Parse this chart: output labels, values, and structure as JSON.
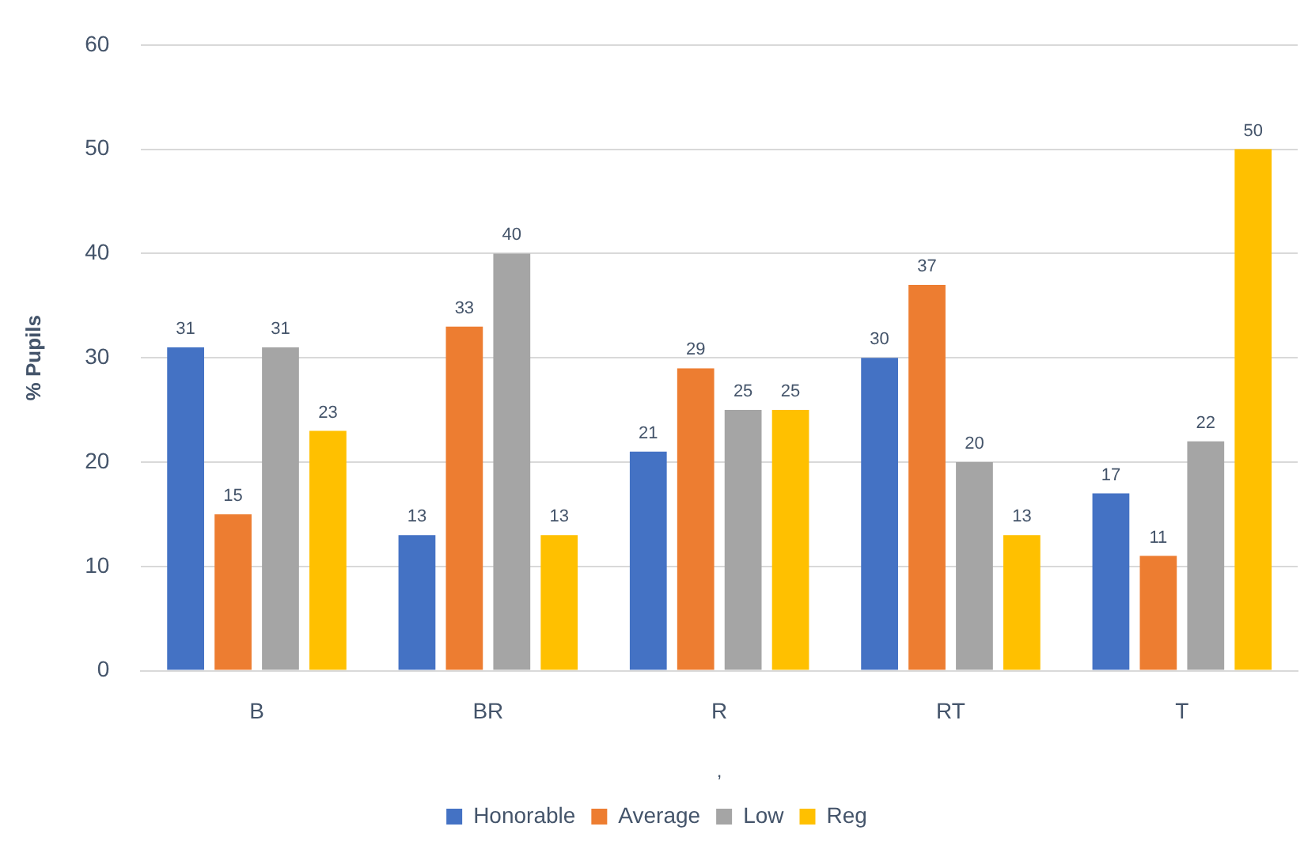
{
  "chart_data": {
    "type": "bar",
    "categories": [
      "B",
      "BR",
      "R",
      "RT",
      "T"
    ],
    "xlabel": ",",
    "ylabel": "% Pupils",
    "ylim": [
      0,
      60
    ],
    "yticks": [
      0,
      10,
      20,
      30,
      40,
      50,
      60
    ],
    "grid": "y",
    "legend": "bottom",
    "data_labels": true,
    "series": [
      {
        "name": "Honorable",
        "color": "#4472c4",
        "values": [
          31,
          13,
          21,
          30,
          17
        ]
      },
      {
        "name": "Average",
        "color": "#ed7d31",
        "values": [
          15,
          33,
          29,
          37,
          11
        ]
      },
      {
        "name": "Low",
        "color": "#a5a5a5",
        "values": [
          31,
          40,
          25,
          20,
          22
        ]
      },
      {
        "name": "Reg",
        "color": "#ffc000",
        "values": [
          23,
          13,
          25,
          13,
          50
        ]
      }
    ]
  }
}
